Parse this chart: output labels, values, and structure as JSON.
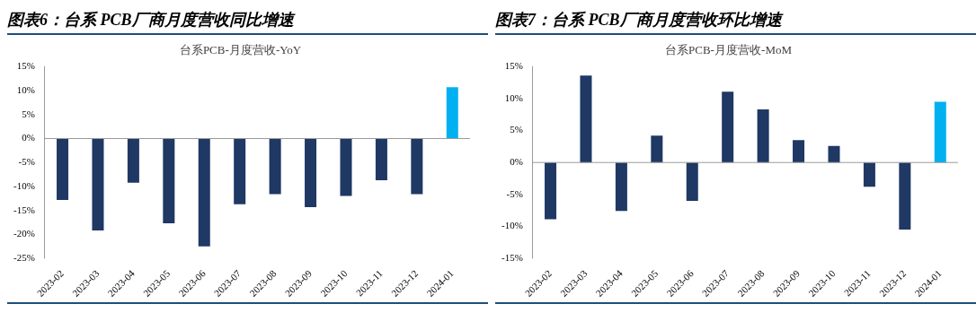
{
  "chart_data": [
    {
      "type": "bar",
      "title": "图表6：台系 PCB厂商月度营收同比增速",
      "subtitle": "台系PCB-月度营收-YoY",
      "categories": [
        "2023-02",
        "2023-03",
        "2023-04",
        "2023-05",
        "2023-06",
        "2023-07",
        "2023-08",
        "2023-09",
        "2023-10",
        "2023-11",
        "2023-12",
        "2024-01"
      ],
      "values": [
        -12.8,
        -19.2,
        -9.2,
        -17.7,
        -22.5,
        -13.7,
        -11.6,
        -14.3,
        -12.0,
        -8.7,
        -11.6,
        10.7
      ],
      "colors": [
        "#1f3864",
        "#1f3864",
        "#1f3864",
        "#1f3864",
        "#1f3864",
        "#1f3864",
        "#1f3864",
        "#1f3864",
        "#1f3864",
        "#1f3864",
        "#1f3864",
        "#00b0f0"
      ],
      "ylim": [
        -25,
        15
      ],
      "yticks": [
        {
          "value": -25,
          "label": "-25%"
        },
        {
          "value": -20,
          "label": "-20%"
        },
        {
          "value": -15,
          "label": "-15%"
        },
        {
          "value": -10,
          "label": "-10%"
        },
        {
          "value": -5,
          "label": "-5%"
        },
        {
          "value": 0,
          "label": "0%"
        },
        {
          "value": 5,
          "label": "5%"
        },
        {
          "value": 10,
          "label": "10%"
        },
        {
          "value": 15,
          "label": "15%"
        }
      ],
      "legend": false
    },
    {
      "type": "bar",
      "title": "图表7：台系 PCB厂商月度营收环比增速",
      "subtitle": "台系PCB-月度营收-MoM",
      "categories": [
        "2023-02",
        "2023-03",
        "2023-04",
        "2023-05",
        "2023-06",
        "2023-07",
        "2023-08",
        "2023-09",
        "2023-10",
        "2023-11",
        "2023-12",
        "2024-01"
      ],
      "values": [
        -8.9,
        13.6,
        -7.6,
        4.2,
        -6.0,
        11.1,
        8.3,
        3.5,
        2.6,
        -3.8,
        -10.5,
        9.5
      ],
      "colors": [
        "#1f3864",
        "#1f3864",
        "#1f3864",
        "#1f3864",
        "#1f3864",
        "#1f3864",
        "#1f3864",
        "#1f3864",
        "#1f3864",
        "#1f3864",
        "#1f3864",
        "#00b0f0"
      ],
      "ylim": [
        -15,
        15
      ],
      "yticks": [
        {
          "value": -15,
          "label": "-15%"
        },
        {
          "value": -10,
          "label": "-10%"
        },
        {
          "value": -5,
          "label": "-5%"
        },
        {
          "value": 0,
          "label": "0%"
        },
        {
          "value": 5,
          "label": "5%"
        },
        {
          "value": 10,
          "label": "10%"
        },
        {
          "value": 15,
          "label": "15%"
        }
      ],
      "legend": false
    }
  ]
}
